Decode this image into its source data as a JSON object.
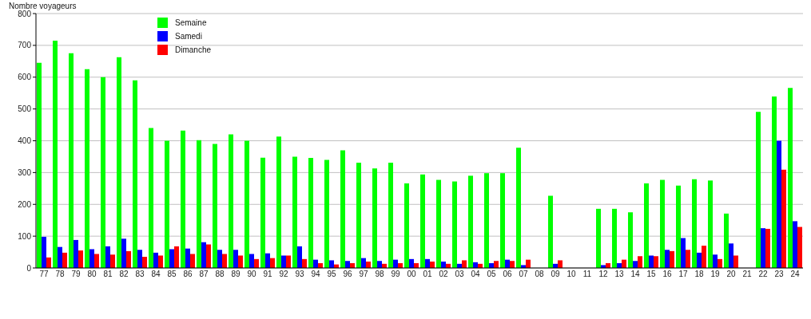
{
  "chart_data": {
    "type": "bar",
    "ylabel": "Nombre voyageurs",
    "categories": [
      "77",
      "78",
      "79",
      "80",
      "81",
      "82",
      "83",
      "84",
      "85",
      "86",
      "87",
      "88",
      "89",
      "90",
      "91",
      "92",
      "93",
      "94",
      "95",
      "96",
      "97",
      "98",
      "99",
      "00",
      "01",
      "02",
      "03",
      "04",
      "05",
      "06",
      "07",
      "08",
      "09",
      "10",
      "11",
      "12",
      "13",
      "14",
      "15",
      "16",
      "17",
      "18",
      "19",
      "20",
      "21",
      "22",
      "23",
      "24"
    ],
    "series": [
      {
        "name": "Semaine",
        "color": "#00ff00",
        "values": [
          645,
          715,
          675,
          625,
          600,
          663,
          590,
          440,
          400,
          432,
          402,
          390,
          420,
          400,
          347,
          413,
          350,
          346,
          340,
          370,
          331,
          313,
          331,
          266,
          294,
          277,
          272,
          290,
          298,
          298,
          378,
          null,
          227,
          null,
          null,
          186,
          186,
          175,
          266,
          277,
          259,
          279,
          275,
          171,
          null,
          491,
          539,
          566
        ]
      },
      {
        "name": "Samedi",
        "color": "#0000ff",
        "values": [
          98,
          66,
          88,
          59,
          68,
          92,
          57,
          48,
          59,
          61,
          81,
          57,
          57,
          44,
          46,
          39,
          68,
          26,
          24,
          22,
          31,
          22,
          26,
          28,
          28,
          20,
          13,
          18,
          15,
          26,
          9,
          null,
          13,
          null,
          null,
          9,
          15,
          22,
          39,
          57,
          94,
          48,
          42,
          77,
          null,
          125,
          400,
          147
        ]
      },
      {
        "name": "Dimanche",
        "color": "#ff0000",
        "values": [
          33,
          48,
          55,
          44,
          42,
          53,
          35,
          39,
          68,
          44,
          74,
          44,
          39,
          28,
          31,
          39,
          28,
          15,
          11,
          15,
          20,
          13,
          15,
          15,
          20,
          13,
          24,
          13,
          22,
          22,
          26,
          null,
          24,
          null,
          null,
          15,
          26,
          37,
          37,
          53,
          57,
          70,
          28,
          39,
          null,
          123,
          309,
          129
        ]
      }
    ],
    "ylim": [
      0,
      800
    ],
    "yticks": [
      0,
      100,
      200,
      300,
      400,
      500,
      600,
      700,
      800
    ],
    "grid": "y",
    "legend": "top left"
  }
}
